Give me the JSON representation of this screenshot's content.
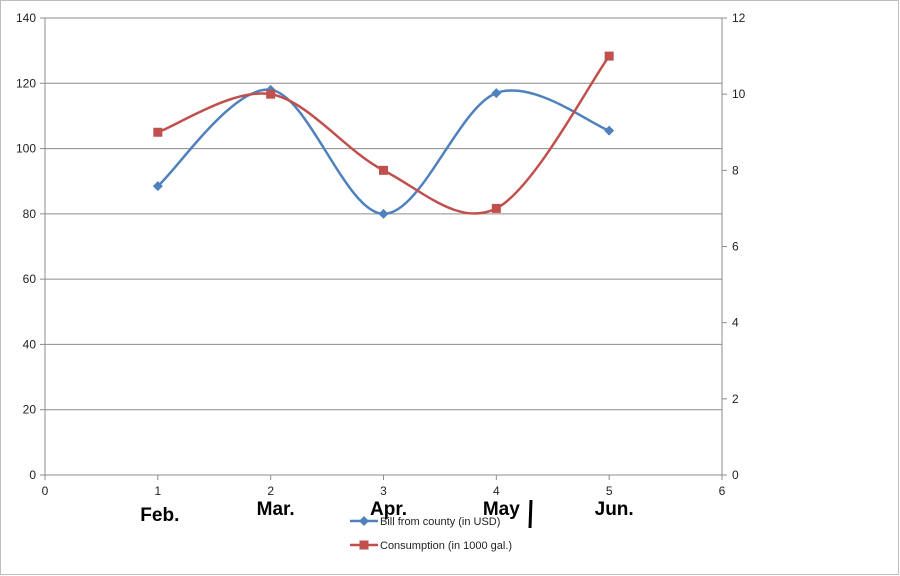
{
  "chart_data": {
    "type": "line",
    "title": "",
    "xlabel": "",
    "ylabel": "",
    "xlim": [
      0,
      6
    ],
    "ylim_left": [
      0,
      140
    ],
    "ylim_right": [
      0,
      12
    ],
    "x_ticks": [
      "0",
      "1",
      "2",
      "3",
      "4",
      "5",
      "6"
    ],
    "y_left_ticks": [
      "0",
      "20",
      "40",
      "60",
      "80",
      "100",
      "120",
      "140"
    ],
    "y_right_ticks": [
      "0",
      "2",
      "4",
      "6",
      "8",
      "10",
      "12"
    ],
    "grid": "horizontal",
    "smooth": true,
    "legend_position": "bottom",
    "handwritten_month_labels": [
      "Feb.",
      "Mar.",
      "Apr.",
      "May",
      "Jun."
    ],
    "series": [
      {
        "name": "Bill from county (in USD)",
        "axis": "left",
        "color": "#4f81bd",
        "marker": "diamond",
        "x": [
          1,
          2,
          3,
          4,
          5
        ],
        "values": [
          88.5,
          118,
          80,
          117,
          105.5
        ]
      },
      {
        "name": "Consumption (in 1000 gal.)",
        "axis": "right",
        "color": "#c0504d",
        "marker": "square",
        "x": [
          1,
          2,
          3,
          4,
          5
        ],
        "values": [
          9,
          10,
          8,
          7,
          11
        ]
      }
    ]
  }
}
